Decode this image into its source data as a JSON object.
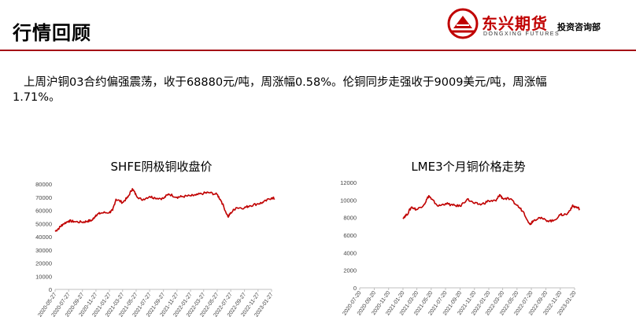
{
  "header": {
    "title": "行情回顾",
    "brand_cn": "东兴期货",
    "brand_en": "DONGXING FUTURES",
    "department": "投资咨询部",
    "accent_color": "#c00000"
  },
  "summary_text": "上周沪铜03合约偏强震荡，收于68880元/吨，周涨幅0.58%。伦铜同步走强收于9009美元/吨，周涨幅1.71%。",
  "chart_data": [
    {
      "type": "line",
      "title": "SHFE阴极铜收盘价",
      "xlabel": "",
      "ylabel": "",
      "line_color": "#c00000",
      "ylim": [
        0,
        80000
      ],
      "yticks": [
        0,
        10000,
        20000,
        30000,
        40000,
        50000,
        60000,
        70000,
        80000
      ],
      "xticks": [
        "2020-05-27",
        "2020-07-27",
        "2020-09-27",
        "2020-11-27",
        "2021-01-27",
        "2021-03-27",
        "2021-05-27",
        "2021-07-27",
        "2021-09-27",
        "2021-11-27",
        "2022-01-27",
        "2022-03-27",
        "2022-05-27",
        "2022-07-27",
        "2022-09-27",
        "2022-11-27",
        "2023-01-27"
      ],
      "series": [
        {
          "name": "",
          "points": [
            [
              "2020-05-27",
              44000
            ],
            [
              "2020-06-15",
              46800
            ],
            [
              "2020-07-01",
              49500
            ],
            [
              "2020-07-27",
              52000
            ],
            [
              "2020-08-20",
              51500
            ],
            [
              "2020-09-27",
              51000
            ],
            [
              "2020-10-20",
              51800
            ],
            [
              "2020-11-10",
              52500
            ],
            [
              "2020-11-27",
              56500
            ],
            [
              "2020-12-20",
              58000
            ],
            [
              "2021-01-27",
              58500
            ],
            [
              "2021-02-10",
              60000
            ],
            [
              "2021-02-25",
              68500
            ],
            [
              "2021-03-27",
              66000
            ],
            [
              "2021-04-20",
              70000
            ],
            [
              "2021-05-10",
              76500
            ],
            [
              "2021-05-27",
              71500
            ],
            [
              "2021-06-20",
              68000
            ],
            [
              "2021-07-27",
              70500
            ],
            [
              "2021-08-20",
              69500
            ],
            [
              "2021-09-27",
              69000
            ],
            [
              "2021-10-20",
              72500
            ],
            [
              "2021-11-27",
              70000
            ],
            [
              "2021-12-20",
              70500
            ],
            [
              "2022-01-27",
              71000
            ],
            [
              "2022-02-20",
              71500
            ],
            [
              "2022-03-27",
              73000
            ],
            [
              "2022-04-20",
              73500
            ],
            [
              "2022-05-27",
              72000
            ],
            [
              "2022-06-15",
              67000
            ],
            [
              "2022-07-15",
              55000
            ],
            [
              "2022-07-27",
              58000
            ],
            [
              "2022-08-20",
              62000
            ],
            [
              "2022-09-27",
              62000
            ],
            [
              "2022-10-20",
              63500
            ],
            [
              "2022-11-27",
              65000
            ],
            [
              "2022-12-20",
              66000
            ],
            [
              "2023-01-27",
              69500
            ],
            [
              "2023-02-10",
              68880
            ]
          ]
        }
      ]
    },
    {
      "type": "line",
      "title": "LME3个月铜价格走势",
      "xlabel": "",
      "ylabel": "",
      "line_color": "#c00000",
      "ylim": [
        0,
        12000
      ],
      "yticks": [
        0,
        2000,
        4000,
        6000,
        8000,
        10000,
        12000
      ],
      "xticks": [
        "2020-07-20",
        "2020-09-20",
        "2020-11-20",
        "2021-01-20",
        "2021-03-20",
        "2021-05-20",
        "2021-07-20",
        "2021-09-20",
        "2021-11-20",
        "2022-01-20",
        "2022-03-20",
        "2022-05-20",
        "2022-07-20",
        "2022-09-20",
        "2022-11-20",
        "2023-01-20"
      ],
      "series": [
        {
          "name": "",
          "points": [
            [
              "2021-01-20",
              8000
            ],
            [
              "2021-02-05",
              8300
            ],
            [
              "2021-02-25",
              9200
            ],
            [
              "2021-03-20",
              8900
            ],
            [
              "2021-04-20",
              9500
            ],
            [
              "2021-05-10",
              10500
            ],
            [
              "2021-05-20",
              10100
            ],
            [
              "2021-06-20",
              9300
            ],
            [
              "2021-07-20",
              9600
            ],
            [
              "2021-08-20",
              9400
            ],
            [
              "2021-09-20",
              9300
            ],
            [
              "2021-10-20",
              10100
            ],
            [
              "2021-11-20",
              9600
            ],
            [
              "2021-12-20",
              9500
            ],
            [
              "2022-01-20",
              9900
            ],
            [
              "2022-02-20",
              9900
            ],
            [
              "2022-03-07",
              10600
            ],
            [
              "2022-03-20",
              10200
            ],
            [
              "2022-04-20",
              10100
            ],
            [
              "2022-05-20",
              9400
            ],
            [
              "2022-06-15",
              8700
            ],
            [
              "2022-07-15",
              7200
            ],
            [
              "2022-07-25",
              7600
            ],
            [
              "2022-08-20",
              8000
            ],
            [
              "2022-09-20",
              7700
            ],
            [
              "2022-10-20",
              7600
            ],
            [
              "2022-11-20",
              8300
            ],
            [
              "2022-12-20",
              8400
            ],
            [
              "2023-01-10",
              9300
            ],
            [
              "2023-01-25",
              9200
            ],
            [
              "2023-02-10",
              9009
            ]
          ]
        }
      ]
    }
  ]
}
